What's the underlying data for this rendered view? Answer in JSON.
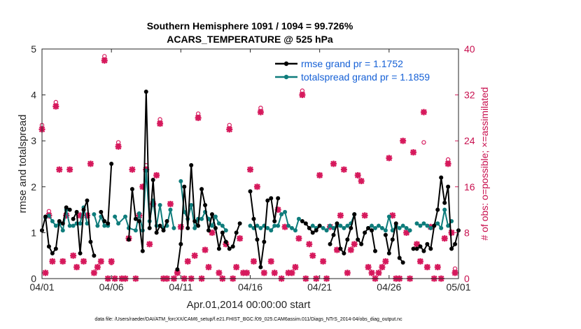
{
  "chart_data": {
    "type": "line",
    "title_line1": "Southern Hemisphere 1091 / 1094 = 99.726%",
    "title_line2": "ACARS_TEMPERATURE @ 525 hPa",
    "xlabel": "Apr.01,2014 00:00:00 start",
    "ylabel_left": "rmse and totalspread",
    "ylabel_right": "# of obs: o=possible; ×=assimilated",
    "xlim": [
      0,
      30
    ],
    "ylim_left": [
      0,
      5
    ],
    "ylim_right": [
      0,
      40
    ],
    "x_ticks": [
      0,
      5,
      10,
      15,
      20,
      25,
      30
    ],
    "x_tick_labels": [
      "04/01",
      "04/06",
      "04/11",
      "04/16",
      "04/21",
      "04/26",
      "05/01"
    ],
    "y_ticks_left": [
      "0",
      "1",
      "2",
      "3",
      "4",
      "5"
    ],
    "y_ticks_right": [
      "0",
      "8",
      "16",
      "24",
      "32",
      "40"
    ],
    "legend": {
      "rmse_label": "rmse grand pr = 1.1752",
      "spread_label": "totalspread grand pr = 1.1859",
      "position": "top-right"
    },
    "colors": {
      "rmse": "#000000",
      "spread": "#0e7c7b",
      "obs": "#d6195c",
      "axis": "#262626",
      "legend_text": "#1560d6"
    },
    "rmse": [
      [
        [
          0.0,
          1.05
        ],
        [
          0.25,
          1.35
        ],
        [
          0.5,
          0.7
        ],
        [
          0.75,
          0.55
        ],
        [
          1.0,
          0.65
        ],
        [
          1.25,
          1.25
        ],
        [
          1.5,
          1.2
        ],
        [
          1.75,
          1.55
        ],
        [
          2.0,
          1.5
        ]
      ],
      [
        [
          2.25,
          1.3
        ],
        [
          2.5,
          1.45
        ],
        [
          2.75,
          0.55
        ],
        [
          3.0,
          1.5
        ],
        [
          3.25,
          1.7
        ],
        [
          3.5,
          0.8
        ],
        [
          3.75,
          0.5
        ]
      ],
      [
        [
          4.25,
          1.45
        ],
        [
          4.5,
          1.25
        ],
        [
          4.75,
          1.2
        ],
        [
          5.0,
          2.5
        ]
      ],
      [
        [
          6.25,
          0.85
        ],
        [
          6.5,
          1.95
        ],
        [
          6.75,
          1.3
        ],
        [
          7.0,
          1.25
        ],
        [
          7.25,
          0.6
        ],
        [
          7.5,
          4.07
        ],
        [
          7.75,
          1.1
        ],
        [
          8.0,
          2.15
        ],
        [
          8.25,
          1.0
        ],
        [
          8.5,
          1.15
        ],
        [
          8.75,
          1.05
        ],
        [
          9.0,
          1.25
        ]
      ],
      [
        [
          9.75,
          0.2
        ],
        [
          10.0,
          0.75
        ],
        [
          10.25,
          2.0
        ],
        [
          10.5,
          1.1
        ],
        [
          10.75,
          2.47
        ],
        [
          11.0,
          1.25
        ],
        [
          11.25,
          1.15
        ],
        [
          11.5,
          1.95
        ],
        [
          11.75,
          1.6
        ],
        [
          12.0,
          1.05
        ],
        [
          12.25,
          1.4
        ],
        [
          12.5,
          1.1
        ],
        [
          12.75,
          0.65
        ],
        [
          13.0,
          1.0
        ],
        [
          13.25,
          0.8
        ],
        [
          13.5,
          0.65
        ],
        [
          13.75,
          0.7
        ],
        [
          14.0,
          1.0
        ],
        [
          14.25,
          1.2
        ]
      ],
      [
        [
          15.0,
          1.9
        ],
        [
          15.25,
          1.3
        ],
        [
          15.5,
          0.85
        ],
        [
          15.75,
          0.25
        ],
        [
          16.0,
          0.8
        ],
        [
          16.25,
          1.7
        ],
        [
          16.5,
          1.75
        ],
        [
          16.75,
          1.25
        ],
        [
          17.0,
          1.75
        ]
      ],
      [
        [
          18.75,
          1.25
        ],
        [
          19.0,
          1.2
        ],
        [
          19.25,
          1.1
        ],
        [
          19.5,
          1.0
        ],
        [
          19.75,
          1.05
        ],
        [
          20.0,
          1.15
        ]
      ],
      [
        [
          20.75,
          0.75
        ],
        [
          21.0,
          0.95
        ],
        [
          21.25,
          1.2
        ],
        [
          21.5,
          0.65
        ],
        [
          21.75,
          0.55
        ],
        [
          22.0,
          0.85
        ],
        [
          22.25,
          1.1
        ],
        [
          22.5,
          1.4
        ],
        [
          22.75,
          0.85
        ],
        [
          23.0,
          0.75
        ],
        [
          23.25,
          1.0
        ],
        [
          23.5,
          1.1
        ],
        [
          23.75,
          1.05
        ],
        [
          24.0,
          0.6
        ]
      ],
      [
        [
          24.75,
          0.95
        ],
        [
          25.0,
          0.55
        ],
        [
          25.25,
          0.85
        ],
        [
          25.5,
          1.2
        ],
        [
          25.75,
          0.45
        ],
        [
          26.0,
          0.35
        ]
      ],
      [
        [
          26.75,
          0.65
        ],
        [
          27.0,
          0.65
        ],
        [
          27.25,
          0.7
        ],
        [
          27.5,
          0.6
        ],
        [
          27.75,
          0.75
        ],
        [
          28.0,
          0.65
        ],
        [
          28.25,
          1.15
        ],
        [
          28.5,
          1.5
        ],
        [
          28.75,
          2.2
        ],
        [
          29.0,
          1.65
        ],
        [
          29.25,
          2.0
        ],
        [
          29.5,
          0.65
        ],
        [
          29.75,
          0.75
        ],
        [
          30.0,
          1.05
        ]
      ]
    ],
    "spread": [
      [
        [
          0.25,
          1.33
        ],
        [
          0.5,
          1.37
        ],
        [
          0.75,
          1.25
        ],
        [
          1.0,
          1.15
        ],
        [
          1.25,
          1.2
        ],
        [
          1.5,
          1.05
        ],
        [
          1.75,
          1.5
        ],
        [
          2.0,
          1.15
        ]
      ],
      [
        [
          2.25,
          1.15
        ],
        [
          2.5,
          1.2
        ],
        [
          2.75,
          1.2
        ],
        [
          3.0,
          1.55
        ],
        [
          3.25,
          1.2
        ]
      ],
      [
        [
          3.75,
          1.4
        ],
        [
          4.0,
          1.15
        ],
        [
          4.25,
          1.35
        ],
        [
          4.5,
          1.15
        ],
        [
          4.75,
          1.15
        ]
      ],
      [
        [
          5.25,
          1.35
        ],
        [
          5.5,
          1.2
        ],
        [
          6.0,
          1.35
        ],
        [
          6.25,
          1.1
        ],
        [
          6.75,
          1.05
        ],
        [
          7.0,
          1.42
        ],
        [
          7.25,
          1.05
        ],
        [
          7.5,
          2.35
        ],
        [
          7.75,
          1.25
        ],
        [
          8.0,
          1.7
        ],
        [
          8.25,
          1.15
        ],
        [
          8.5,
          1.6
        ],
        [
          8.75,
          1.1
        ],
        [
          9.0,
          1.15
        ],
        [
          9.25,
          1.5
        ],
        [
          9.5,
          1.1
        ]
      ],
      [
        [
          10.0,
          2.12
        ],
        [
          10.25,
          1.45
        ],
        [
          10.5,
          1.3
        ],
        [
          10.75,
          1.6
        ],
        [
          11.0,
          1.1
        ],
        [
          11.25,
          1.3
        ],
        [
          11.5,
          1.3
        ],
        [
          11.75,
          1.45
        ],
        [
          12.0,
          1.3
        ],
        [
          12.25,
          1.15
        ],
        [
          12.5,
          1.35
        ],
        [
          12.75,
          1.2
        ],
        [
          13.0,
          1.15
        ],
        [
          13.25,
          1.05
        ]
      ],
      [
        [
          15.0,
          1.15
        ],
        [
          15.25,
          1.1
        ],
        [
          15.5,
          1.15
        ],
        [
          15.75,
          1.1
        ],
        [
          16.0,
          1.15
        ],
        [
          16.25,
          1.1
        ],
        [
          16.5,
          1.05
        ],
        [
          16.75,
          1.15
        ],
        [
          17.0,
          1.15
        ],
        [
          17.25,
          1.4
        ],
        [
          17.5,
          1.45
        ],
        [
          17.75,
          1.15
        ],
        [
          18.0,
          1.1
        ],
        [
          18.25,
          1.05
        ],
        [
          18.5,
          1.3
        ]
      ],
      [
        [
          19.5,
          1.15
        ],
        [
          19.75,
          1.1
        ],
        [
          20.0,
          1.15
        ],
        [
          20.25,
          1.1
        ],
        [
          20.5,
          1.05
        ],
        [
          20.75,
          1.15
        ],
        [
          21.0,
          1.1
        ],
        [
          21.25,
          1.15
        ],
        [
          21.5,
          1.15
        ],
        [
          21.75,
          1.1
        ],
        [
          22.0,
          1.15
        ],
        [
          22.25,
          1.2
        ],
        [
          22.5,
          1.4
        ]
      ],
      [
        [
          23.5,
          1.1
        ],
        [
          23.75,
          1.15
        ],
        [
          24.0,
          1.1
        ],
        [
          24.25,
          1.15
        ],
        [
          24.5,
          1.1
        ],
        [
          24.75,
          1.05
        ],
        [
          25.0,
          1.35
        ],
        [
          25.25,
          1.05
        ],
        [
          25.5,
          1.15
        ],
        [
          25.75,
          1.1
        ],
        [
          26.0,
          1.15
        ],
        [
          26.25,
          1.1
        ],
        [
          26.5,
          1.05
        ]
      ],
      [
        [
          27.0,
          1.2
        ],
        [
          27.25,
          1.15
        ],
        [
          27.5,
          1.2
        ],
        [
          27.75,
          1.15
        ],
        [
          28.0,
          1.1
        ],
        [
          28.25,
          1.15
        ],
        [
          28.5,
          1.2
        ],
        [
          28.75,
          1.1
        ],
        [
          29.0,
          1.5
        ],
        [
          29.25,
          1.15
        ],
        [
          29.5,
          1.25
        ]
      ]
    ],
    "obs_assimilated": [
      [
        0.0,
        26
      ],
      [
        0.25,
        1
      ],
      [
        0.5,
        11
      ],
      [
        0.75,
        3
      ],
      [
        1.0,
        30
      ],
      [
        1.25,
        19
      ],
      [
        1.5,
        3
      ],
      [
        1.75,
        11
      ],
      [
        2.0,
        19
      ],
      [
        2.25,
        4
      ],
      [
        2.5,
        2
      ],
      [
        2.75,
        11
      ],
      [
        3.0,
        3
      ],
      [
        3.25,
        11
      ],
      [
        3.5,
        20
      ],
      [
        3.75,
        1
      ],
      [
        4.0,
        2
      ],
      [
        4.25,
        3
      ],
      [
        4.5,
        38
      ],
      [
        4.75,
        0
      ],
      [
        5.0,
        3
      ],
      [
        5.25,
        0
      ],
      [
        5.5,
        23
      ],
      [
        5.75,
        0
      ],
      [
        6.0,
        0
      ],
      [
        6.25,
        7
      ],
      [
        6.5,
        19
      ],
      [
        6.75,
        0
      ],
      [
        7.0,
        11
      ],
      [
        7.25,
        16
      ],
      [
        7.5,
        19
      ],
      [
        7.75,
        6
      ],
      [
        8.0,
        13
      ],
      [
        8.25,
        18
      ],
      [
        8.5,
        27
      ],
      [
        8.75,
        0
      ],
      [
        9.0,
        0
      ],
      [
        9.25,
        13
      ],
      [
        9.5,
        0
      ],
      [
        9.75,
        1
      ],
      [
        10.0,
        9
      ],
      [
        10.25,
        0
      ],
      [
        10.5,
        3
      ],
      [
        10.75,
        0
      ],
      [
        11.0,
        4
      ],
      [
        11.25,
        28
      ],
      [
        11.5,
        0
      ],
      [
        11.75,
        5
      ],
      [
        12.0,
        2
      ],
      [
        12.25,
        8
      ],
      [
        12.75,
        1
      ],
      [
        13.0,
        0
      ],
      [
        13.25,
        6
      ],
      [
        13.5,
        26
      ],
      [
        13.75,
        0
      ],
      [
        14.0,
        2
      ],
      [
        14.25,
        7
      ],
      [
        14.5,
        1
      ],
      [
        14.75,
        1
      ],
      [
        15.0,
        19
      ],
      [
        15.25,
        3
      ],
      [
        15.5,
        16
      ],
      [
        15.75,
        29
      ],
      [
        16.0,
        1
      ],
      [
        16.5,
        3
      ],
      [
        16.75,
        1
      ],
      [
        17.0,
        12
      ],
      [
        17.25,
        0
      ],
      [
        17.5,
        9
      ],
      [
        17.75,
        1
      ],
      [
        18.0,
        1
      ],
      [
        18.25,
        2
      ],
      [
        18.5,
        7
      ],
      [
        18.75,
        32
      ],
      [
        19.0,
        0
      ],
      [
        19.25,
        6
      ],
      [
        19.5,
        4
      ],
      [
        19.75,
        0
      ],
      [
        20.0,
        18
      ],
      [
        20.25,
        3
      ],
      [
        20.5,
        0
      ],
      [
        20.75,
        9
      ],
      [
        21.0,
        20
      ],
      [
        21.25,
        5
      ],
      [
        21.5,
        11
      ],
      [
        21.75,
        19
      ],
      [
        22.0,
        1
      ],
      [
        22.25,
        5
      ],
      [
        22.5,
        6
      ],
      [
        22.75,
        18
      ],
      [
        23.0,
        17
      ],
      [
        23.25,
        11
      ],
      [
        23.5,
        2
      ],
      [
        23.75,
        1
      ],
      [
        24.0,
        0
      ],
      [
        24.25,
        1
      ],
      [
        24.5,
        2
      ],
      [
        24.75,
        3
      ],
      [
        25.0,
        21
      ],
      [
        25.25,
        11
      ],
      [
        25.5,
        0
      ],
      [
        25.75,
        0
      ],
      [
        26.0,
        24
      ],
      [
        26.25,
        8
      ],
      [
        26.5,
        0
      ],
      [
        26.75,
        22
      ],
      [
        27.0,
        6
      ],
      [
        27.25,
        3
      ],
      [
        27.5,
        29
      ],
      [
        27.75,
        2
      ],
      [
        28.0,
        9
      ],
      [
        28.25,
        0
      ],
      [
        28.5,
        2
      ],
      [
        28.75,
        0
      ],
      [
        29.0,
        7
      ],
      [
        29.25,
        20
      ],
      [
        29.5,
        8
      ],
      [
        29.75,
        1
      ]
    ],
    "obs_possible": [
      [
        0.0,
        26
      ],
      [
        0.5,
        11
      ],
      [
        1.0,
        30
      ],
      [
        4.5,
        38
      ],
      [
        5.0,
        2
      ],
      [
        5.5,
        23
      ],
      [
        7.5,
        19
      ],
      [
        8.5,
        27
      ],
      [
        11.25,
        28
      ],
      [
        13.5,
        26
      ],
      [
        15.75,
        29
      ],
      [
        18.75,
        32
      ],
      [
        27.5,
        23
      ],
      [
        29.25,
        20
      ],
      [
        29.75,
        1
      ]
    ]
  },
  "footer": {
    "data_file": "data file: /Users/raeder/DAI/ATM_forcXX/CAM6_setup/f.e21.FHIST_BGC.f09_025.CAM6assim.011/Diags_NTrS_2014-04/obs_diag_output.nc"
  }
}
